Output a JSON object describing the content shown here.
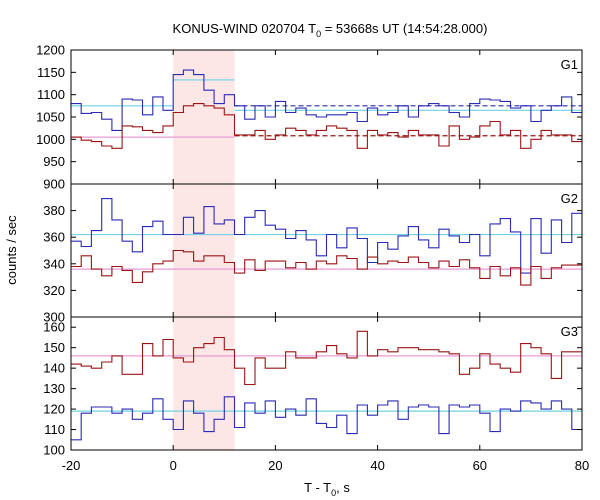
{
  "chart_data": {
    "type": "line",
    "title_main": "KONUS-WIND 020704 T",
    "title_sub": "0",
    "title_rest": " = 53668s UT (14:54:28.000)",
    "xlabel_main": "T - T",
    "xlabel_sub": "0",
    "xlabel_rest": ", s",
    "ylabel": "counts / sec",
    "xlim": [
      -20,
      80
    ],
    "x_ticks": [
      "-20",
      "0",
      "20",
      "40",
      "60",
      "80"
    ],
    "highlight_interval": [
      0,
      12
    ],
    "colors": {
      "blue": "#2a2ab4",
      "red": "#9b1414",
      "cyan": "#6fd2e6",
      "pink": "#e89bd6",
      "highlight": "#fde6e6"
    },
    "bin_edges": [
      -20,
      -18,
      -16,
      -14,
      -12,
      -10,
      -8,
      -6,
      -4,
      -2,
      0,
      2,
      4,
      6,
      8,
      10,
      12,
      14,
      16,
      18,
      20,
      22,
      24,
      26,
      28,
      30,
      32,
      34,
      36,
      38,
      40,
      42,
      44,
      46,
      48,
      50,
      52,
      54,
      56,
      58,
      60,
      62,
      64,
      66,
      68,
      70,
      72,
      74,
      76,
      78,
      80
    ],
    "panels": [
      {
        "label": "G1",
        "ylim": [
          900,
          1200
        ],
        "y_ticks": [
          900,
          950,
          1000,
          1050,
          1100,
          1150,
          1200
        ],
        "series": [
          {
            "color": "blue",
            "values": [
              1080,
              1058,
              1060,
              1045,
              1020,
              1090,
              1088,
              1055,
              1095,
              1065,
              1145,
              1155,
              1145,
              1110,
              1080,
              1100,
              1075,
              1045,
              1075,
              1050,
              1085,
              1060,
              1070,
              1055,
              1050,
              1055,
              1055,
              1060,
              1040,
              1070,
              1055,
              1060,
              1075,
              1050,
              1075,
              1080,
              1075,
              1060,
              1050,
              1080,
              1090,
              1088,
              1085,
              1070,
              1075,
              1040,
              1065,
              1075,
              1095,
              1060
            ]
          },
          {
            "color": "red",
            "values": [
              1005,
              998,
              995,
              985,
              980,
              1030,
              1028,
              1020,
              1015,
              1030,
              1060,
              1075,
              1080,
              1075,
              1070,
              1055,
              1010,
              1010,
              1020,
              1000,
              1010,
              1025,
              1020,
              1010,
              1020,
              1030,
              1025,
              1020,
              980,
              1020,
              1010,
              1015,
              1005,
              1020,
              1010,
              1010,
              985,
              1030,
              1000,
              1005,
              1030,
              1040,
              1010,
              1020,
              980,
              1000,
              1020,
              1010,
              1010,
              995
            ]
          }
        ],
        "levels": [
          {
            "color": "cyan",
            "y": 1075,
            "dashed": false,
            "x_range": [
              -20,
              0
            ]
          },
          {
            "color": "cyan",
            "y": 1133,
            "dashed": false,
            "x_range": [
              0,
              12
            ]
          },
          {
            "color": "cyan",
            "y": 1065,
            "dashed": false,
            "x_range": [
              12,
              80
            ]
          },
          {
            "color": "blue",
            "y": 1075,
            "dashed": true,
            "x_range": [
              12,
              80
            ]
          },
          {
            "color": "pink",
            "y": 1005,
            "dashed": false,
            "x_range": [
              -20,
              12
            ]
          },
          {
            "color": "red",
            "y": 1008,
            "dashed": true,
            "x_range": [
              12,
              80
            ]
          }
        ]
      },
      {
        "label": "G2",
        "ylim": [
          300,
          400
        ],
        "y_ticks": [
          300,
          320,
          340,
          360,
          380
        ],
        "series": [
          {
            "color": "blue",
            "values": [
              357,
              353,
              365,
              389,
              373,
              357,
              349,
              368,
              372,
              362,
              362,
              375,
              363,
              383,
              370,
              373,
              362,
              375,
              380,
              369,
              366,
              359,
              365,
              358,
              346,
              362,
              352,
              367,
              359,
              341,
              356,
              351,
              361,
              368,
              358,
              352,
              366,
              361,
              356,
              362,
              346,
              370,
              374,
              364,
              333,
              374,
              348,
              373,
              356,
              378
            ]
          },
          {
            "color": "red",
            "values": [
              338,
              346,
              336,
              331,
              338,
              335,
              326,
              334,
              340,
              342,
              350,
              349,
              342,
              346,
              346,
              341,
              333,
              343,
              335,
              342,
              342,
              337,
              341,
              336,
              342,
              340,
              346,
              344,
              336,
              345,
              340,
              342,
              341,
              345,
              341,
              337,
              342,
              338,
              343,
              337,
              329,
              338,
              331,
              337,
              324,
              338,
              329,
              337,
              339,
              339
            ]
          }
        ],
        "levels": [
          {
            "color": "cyan",
            "y": 362,
            "dashed": false,
            "x_range": [
              -20,
              80
            ]
          },
          {
            "color": "pink",
            "y": 336,
            "dashed": false,
            "x_range": [
              -20,
              80
            ]
          }
        ]
      },
      {
        "label": "G3",
        "ylim": [
          100,
          165
        ],
        "y_ticks": [
          100,
          110,
          120,
          130,
          140,
          150,
          160
        ],
        "series": [
          {
            "color": "blue",
            "values": [
              105,
              118,
              121,
              121,
              118,
              120,
              115,
              118,
              125,
              115,
              110,
              124,
              118,
              109,
              115,
              126,
              111,
              123,
              118,
              124,
              116,
              120,
              117,
              125,
              113,
              111,
              117,
              108,
              122,
              117,
              122,
              124,
              115,
              121,
              122,
              121,
              108,
              122,
              121,
              122,
              118,
              109,
              120,
              119,
              124,
              123,
              120,
              124,
              120,
              110
            ]
          },
          {
            "color": "red",
            "values": [
              142,
              141,
              140,
              143,
              146,
              137,
              137,
              152,
              146,
              154,
              145,
              143,
              150,
              152,
              155,
              149,
              140,
              132,
              145,
              140,
              140,
              148,
              145,
              145,
              148,
              151,
              147,
              145,
              158,
              146,
              149,
              148,
              150,
              150,
              149,
              149,
              148,
              147,
              137,
              140,
              147,
              142,
              140,
              138,
              152,
              150,
              147,
              135,
              148,
              148
            ]
          }
        ],
        "levels": [
          {
            "color": "cyan",
            "y": 119,
            "dashed": false,
            "x_range": [
              -20,
              80
            ]
          },
          {
            "color": "pink",
            "y": 146,
            "dashed": false,
            "x_range": [
              -20,
              80
            ]
          }
        ]
      }
    ]
  }
}
